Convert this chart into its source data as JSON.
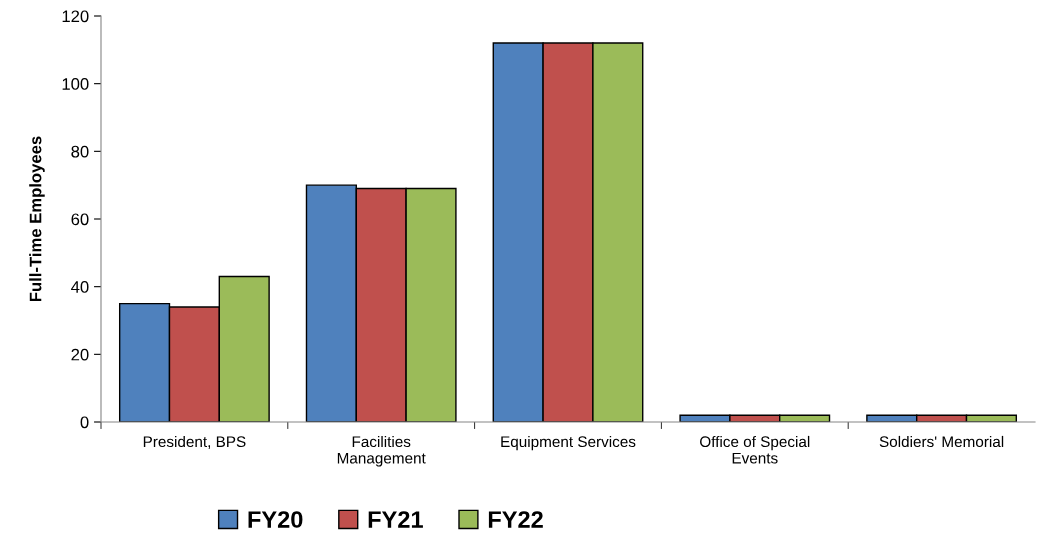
{
  "chart_data": {
    "type": "bar",
    "ylabel": "Full-Time Employees",
    "categories": [
      "President, BPS",
      "Facilities\nManagement",
      "Equipment Services",
      "Office of Special\nEvents",
      "Soldiers' Memorial"
    ],
    "series": [
      {
        "name": "FY20",
        "color": "#4f81bd",
        "values": [
          35,
          70,
          112,
          2,
          2
        ]
      },
      {
        "name": "FY21",
        "color": "#c0504d",
        "values": [
          34,
          69,
          112,
          2,
          2
        ]
      },
      {
        "name": "FY22",
        "color": "#9bbb59",
        "values": [
          43,
          69,
          112,
          2,
          2
        ]
      }
    ],
    "ylim": [
      0,
      120
    ],
    "yticks": [
      0,
      20,
      40,
      60,
      80,
      100,
      120
    ],
    "grid": false,
    "legend": "bottom"
  }
}
